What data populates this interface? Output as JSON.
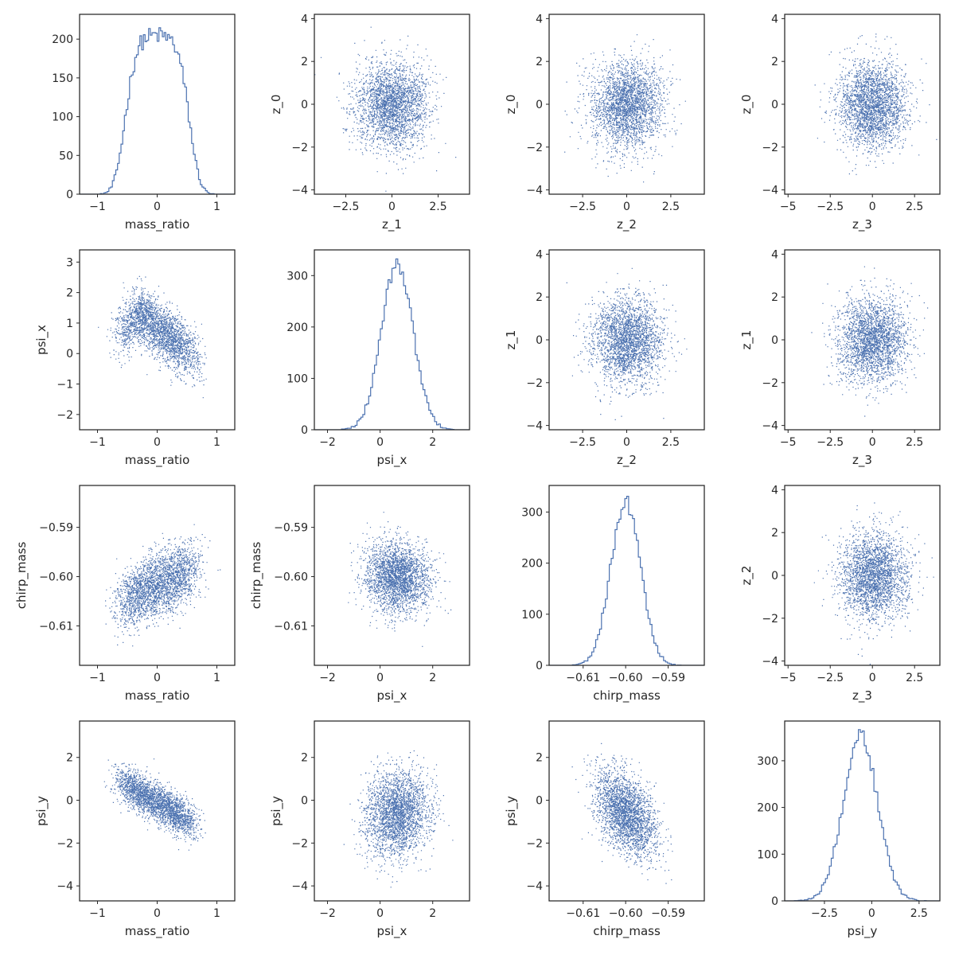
{
  "colors": {
    "series": "#4c72b0",
    "frame": "#262626",
    "text": "#262626"
  },
  "chart_data": [
    {
      "type": "histogram",
      "row": 0,
      "col": 0,
      "xlabel": "mass_ratio",
      "ylabel": "",
      "xlim": [
        -1.3,
        1.3
      ],
      "ylim": [
        0,
        232
      ],
      "xticks": [
        -1,
        0,
        1
      ],
      "yticks": [
        0,
        50,
        100,
        150,
        200
      ],
      "distribution": {
        "shape": "plateau",
        "center": 0.0,
        "halfwidth": 0.55,
        "edge": 0.14,
        "peak": 205,
        "bins": 90
      }
    },
    {
      "type": "scatter",
      "row": 0,
      "col": 1,
      "xlabel": "z_1",
      "ylabel": "z_0",
      "xlim": [
        -4.2,
        4.2
      ],
      "ylim": [
        -4.2,
        4.2
      ],
      "xticks": [
        -2.5,
        0.0,
        2.5
      ],
      "yticks": [
        -4,
        -2,
        0,
        2,
        4
      ],
      "x_dist": {
        "mean": 0,
        "sd": 1
      },
      "y_dist": {
        "mean": 0,
        "sd": 1
      },
      "correlation": 0
    },
    {
      "type": "scatter",
      "row": 0,
      "col": 2,
      "xlabel": "z_2",
      "ylabel": "z_0",
      "xlim": [
        -4.4,
        4.4
      ],
      "ylim": [
        -4.2,
        4.2
      ],
      "xticks": [
        -2.5,
        0.0,
        2.5
      ],
      "yticks": [
        -4,
        -2,
        0,
        2,
        4
      ],
      "x_dist": {
        "mean": 0,
        "sd": 1
      },
      "y_dist": {
        "mean": 0,
        "sd": 1
      },
      "correlation": 0
    },
    {
      "type": "scatter",
      "row": 0,
      "col": 3,
      "xlabel": "z_3",
      "ylabel": "z_0",
      "xlim": [
        -5.2,
        4.0
      ],
      "ylim": [
        -4.2,
        4.2
      ],
      "xticks": [
        -5.0,
        -2.5,
        0.0,
        2.5
      ],
      "yticks": [
        -4,
        -2,
        0,
        2,
        4
      ],
      "x_dist": {
        "mean": 0,
        "sd": 1
      },
      "y_dist": {
        "mean": 0,
        "sd": 1
      },
      "correlation": 0
    },
    {
      "type": "scatter",
      "row": 1,
      "col": 0,
      "xlabel": "mass_ratio",
      "ylabel": "psi_x",
      "xlim": [
        -1.3,
        1.3
      ],
      "ylim": [
        -2.5,
        3.4
      ],
      "xticks": [
        -1,
        0,
        1
      ],
      "yticks": [
        -2,
        -1,
        0,
        1,
        2,
        3
      ],
      "x_dist": {
        "shape": "plateau",
        "center": 0.0,
        "halfwidth": 0.55,
        "edge": 0.14
      },
      "y_dist": {
        "relation": "tent",
        "peak_x": -0.3,
        "peak_y": 1.3,
        "left_y": 0.5,
        "right_y": -0.3,
        "noise": 0.45
      }
    },
    {
      "type": "histogram",
      "row": 1,
      "col": 1,
      "xlabel": "psi_x",
      "ylabel": "",
      "xlim": [
        -2.5,
        3.4
      ],
      "ylim": [
        0,
        350
      ],
      "xticks": [
        -2,
        0,
        2
      ],
      "yticks": [
        0,
        100,
        200,
        300
      ],
      "distribution": {
        "shape": "normal",
        "mean": 0.65,
        "sd": 0.6,
        "peak": 320,
        "bins": 80
      }
    },
    {
      "type": "scatter",
      "row": 1,
      "col": 2,
      "xlabel": "z_2",
      "ylabel": "z_1",
      "xlim": [
        -4.4,
        4.4
      ],
      "ylim": [
        -4.2,
        4.2
      ],
      "xticks": [
        -2.5,
        0.0,
        2.5
      ],
      "yticks": [
        -4,
        -2,
        0,
        2,
        4
      ],
      "x_dist": {
        "mean": 0,
        "sd": 1
      },
      "y_dist": {
        "mean": 0,
        "sd": 1
      },
      "correlation": 0
    },
    {
      "type": "scatter",
      "row": 1,
      "col": 3,
      "xlabel": "z_3",
      "ylabel": "z_1",
      "xlim": [
        -5.2,
        4.0
      ],
      "ylim": [
        -4.2,
        4.2
      ],
      "xticks": [
        -5.0,
        -2.5,
        0.0,
        2.5
      ],
      "yticks": [
        -4,
        -2,
        0,
        2,
        4
      ],
      "x_dist": {
        "mean": 0,
        "sd": 1
      },
      "y_dist": {
        "mean": 0,
        "sd": 1
      },
      "correlation": 0
    },
    {
      "type": "scatter",
      "row": 2,
      "col": 0,
      "xlabel": "mass_ratio",
      "ylabel": "chirp_mass",
      "xlim": [
        -1.3,
        1.3
      ],
      "ylim": [
        -0.618,
        -0.5815
      ],
      "xticks": [
        -1,
        0,
        1
      ],
      "yticks": [
        -0.61,
        -0.6,
        -0.59
      ],
      "ytick_labels": [
        "−0.61",
        "−0.60",
        "−0.59"
      ],
      "x_dist": {
        "shape": "plateau",
        "center": 0.0,
        "halfwidth": 0.55,
        "edge": 0.14
      },
      "y_dist": {
        "relation": "rising",
        "at_min_x": -0.6055,
        "at_max_x": -0.598,
        "noise": 0.0032
      }
    },
    {
      "type": "scatter",
      "row": 2,
      "col": 1,
      "xlabel": "psi_x",
      "ylabel": "chirp_mass",
      "xlim": [
        -2.5,
        3.4
      ],
      "ylim": [
        -0.618,
        -0.5815
      ],
      "xticks": [
        -2,
        0,
        2
      ],
      "yticks": [
        -0.61,
        -0.6,
        -0.59
      ],
      "ytick_labels": [
        "−0.61",
        "−0.60",
        "−0.59"
      ],
      "x_dist": {
        "mean": 0.65,
        "sd": 0.6
      },
      "y_dist": {
        "mean": -0.6,
        "sd": 0.0035
      },
      "correlation": -0.1
    },
    {
      "type": "histogram",
      "row": 2,
      "col": 2,
      "xlabel": "chirp_mass",
      "ylabel": "",
      "xlim": [
        -0.618,
        -0.5815
      ],
      "ylim": [
        0,
        352
      ],
      "xticks": [
        -0.61,
        -0.6,
        -0.59
      ],
      "yticks": [
        0,
        100,
        200,
        300
      ],
      "xtick_labels": [
        "−0.61",
        "−0.60",
        "−0.59"
      ],
      "distribution": {
        "shape": "normal",
        "mean": -0.6,
        "sd": 0.0035,
        "peak": 320,
        "bins": 80
      }
    },
    {
      "type": "scatter",
      "row": 2,
      "col": 3,
      "xlabel": "z_3",
      "ylabel": "z_2",
      "xlim": [
        -5.2,
        4.0
      ],
      "ylim": [
        -4.2,
        4.2
      ],
      "xticks": [
        -5.0,
        -2.5,
        0.0,
        2.5
      ],
      "yticks": [
        -4,
        -2,
        0,
        2,
        4
      ],
      "x_dist": {
        "mean": 0,
        "sd": 1
      },
      "y_dist": {
        "mean": 0,
        "sd": 1
      },
      "correlation": 0
    },
    {
      "type": "scatter",
      "row": 3,
      "col": 0,
      "xlabel": "mass_ratio",
      "ylabel": "psi_y",
      "xlim": [
        -1.3,
        1.3
      ],
      "ylim": [
        -4.7,
        3.7
      ],
      "xticks": [
        -1,
        0,
        1
      ],
      "yticks": [
        -4,
        -2,
        0,
        2
      ],
      "x_dist": {
        "shape": "plateau",
        "center": 0.0,
        "halfwidth": 0.55,
        "edge": 0.14
      },
      "y_dist": {
        "relation": "descending",
        "at_min_x": 1.0,
        "at_max_x": -1.2,
        "noise": 0.45
      }
    },
    {
      "type": "scatter",
      "row": 3,
      "col": 1,
      "xlabel": "psi_x",
      "ylabel": "psi_y",
      "xlim": [
        -2.5,
        3.4
      ],
      "ylim": [
        -4.7,
        3.7
      ],
      "xticks": [
        -2,
        0,
        2
      ],
      "yticks": [
        -4,
        -2,
        0,
        2
      ],
      "x_dist": {
        "mean": 0.65,
        "sd": 0.6
      },
      "y_dist": {
        "mean": -0.6,
        "sd": 1.0
      },
      "correlation": 0.1
    },
    {
      "type": "scatter",
      "row": 3,
      "col": 2,
      "xlabel": "chirp_mass",
      "ylabel": "psi_y",
      "xlim": [
        -0.618,
        -0.5815
      ],
      "ylim": [
        -4.7,
        3.7
      ],
      "xticks": [
        -0.61,
        -0.6,
        -0.59
      ],
      "yticks": [
        -4,
        -2,
        0,
        2
      ],
      "xtick_labels": [
        "−0.61",
        "−0.60",
        "−0.59"
      ],
      "x_dist": {
        "mean": -0.6,
        "sd": 0.0035
      },
      "y_dist": {
        "mean": -0.6,
        "sd": 1.0
      },
      "correlation": -0.45
    },
    {
      "type": "histogram",
      "row": 3,
      "col": 3,
      "xlabel": "psi_y",
      "ylabel": "",
      "xlim": [
        -4.6,
        3.6
      ],
      "ylim": [
        0,
        385
      ],
      "xticks": [
        -2.5,
        0.0,
        2.5
      ],
      "yticks": [
        0,
        100,
        200,
        300
      ],
      "distribution": {
        "shape": "normal",
        "mean": -0.6,
        "sd": 0.9,
        "peak": 355,
        "bins": 80
      }
    }
  ]
}
